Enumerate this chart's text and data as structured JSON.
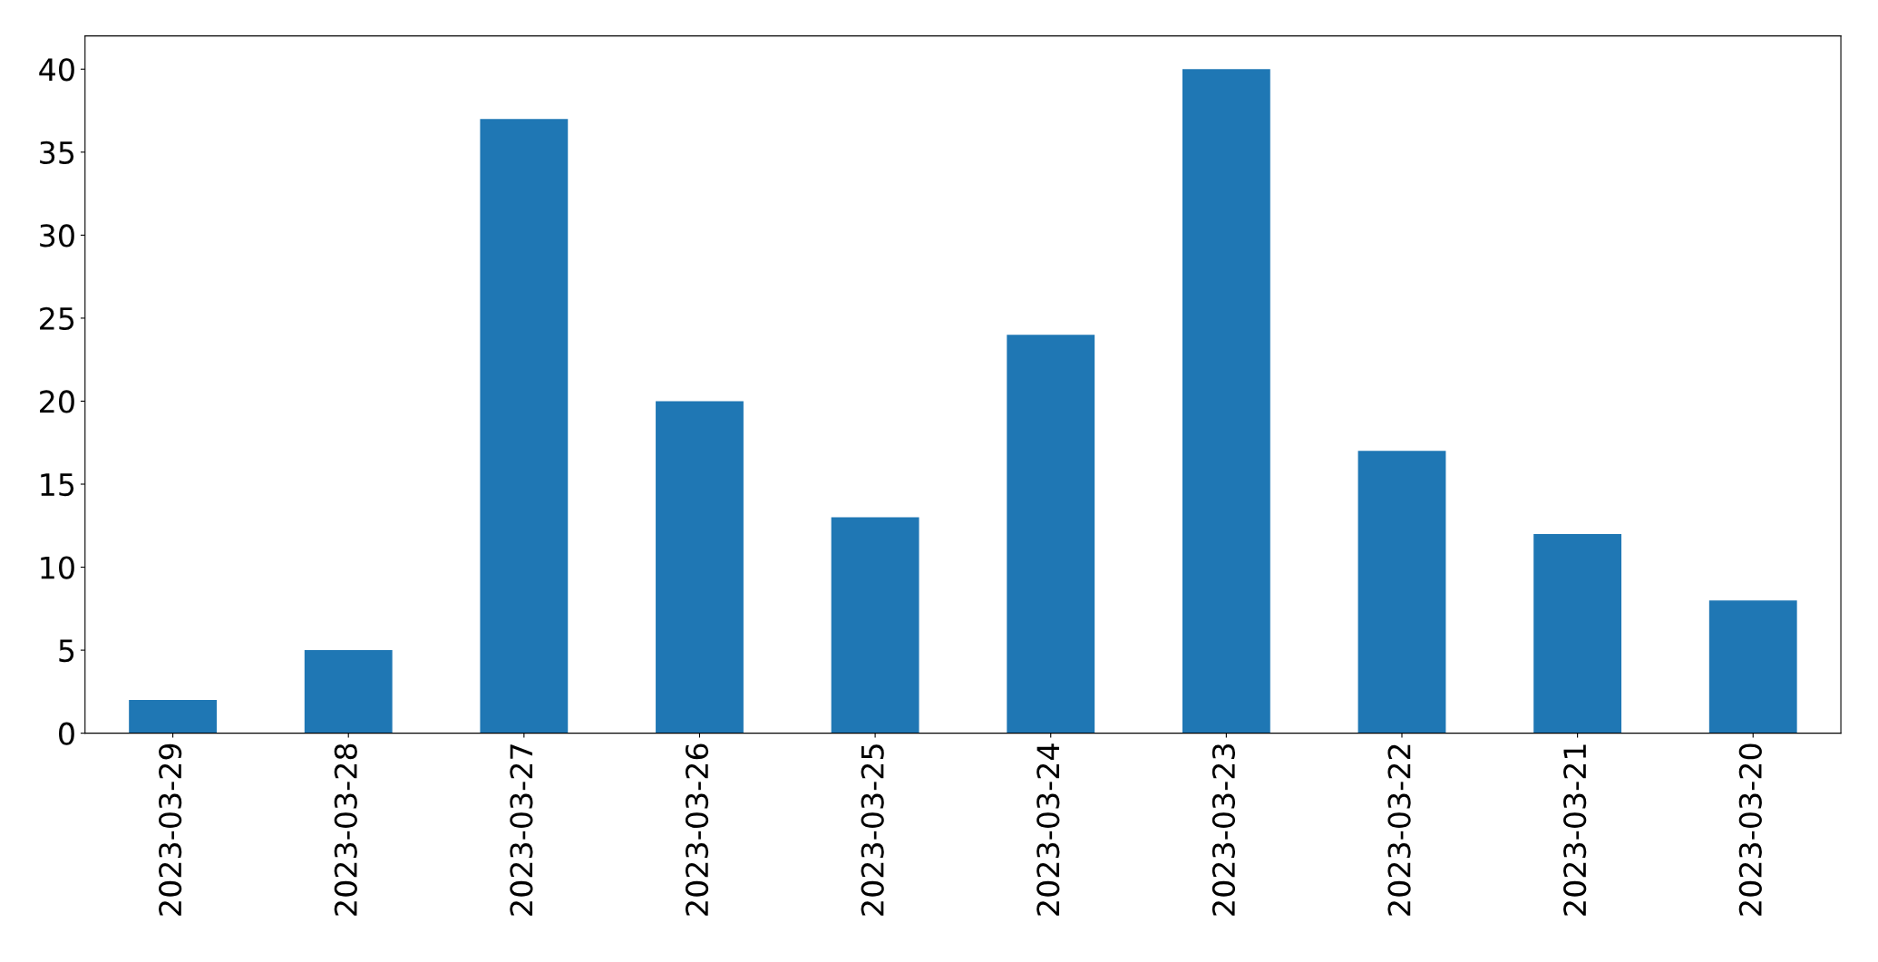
{
  "chart_data": {
    "type": "bar",
    "categories": [
      "2023-03-29",
      "2023-03-28",
      "2023-03-27",
      "2023-03-26",
      "2023-03-25",
      "2023-03-24",
      "2023-03-23",
      "2023-03-22",
      "2023-03-21",
      "2023-03-20"
    ],
    "values": [
      2,
      5,
      37,
      20,
      13,
      24,
      40,
      17,
      12,
      8
    ],
    "color": "#1f77b4",
    "ylim": [
      0,
      42
    ],
    "yticks": [
      0,
      5,
      10,
      15,
      20,
      25,
      30,
      35,
      40
    ],
    "grid": false
  }
}
